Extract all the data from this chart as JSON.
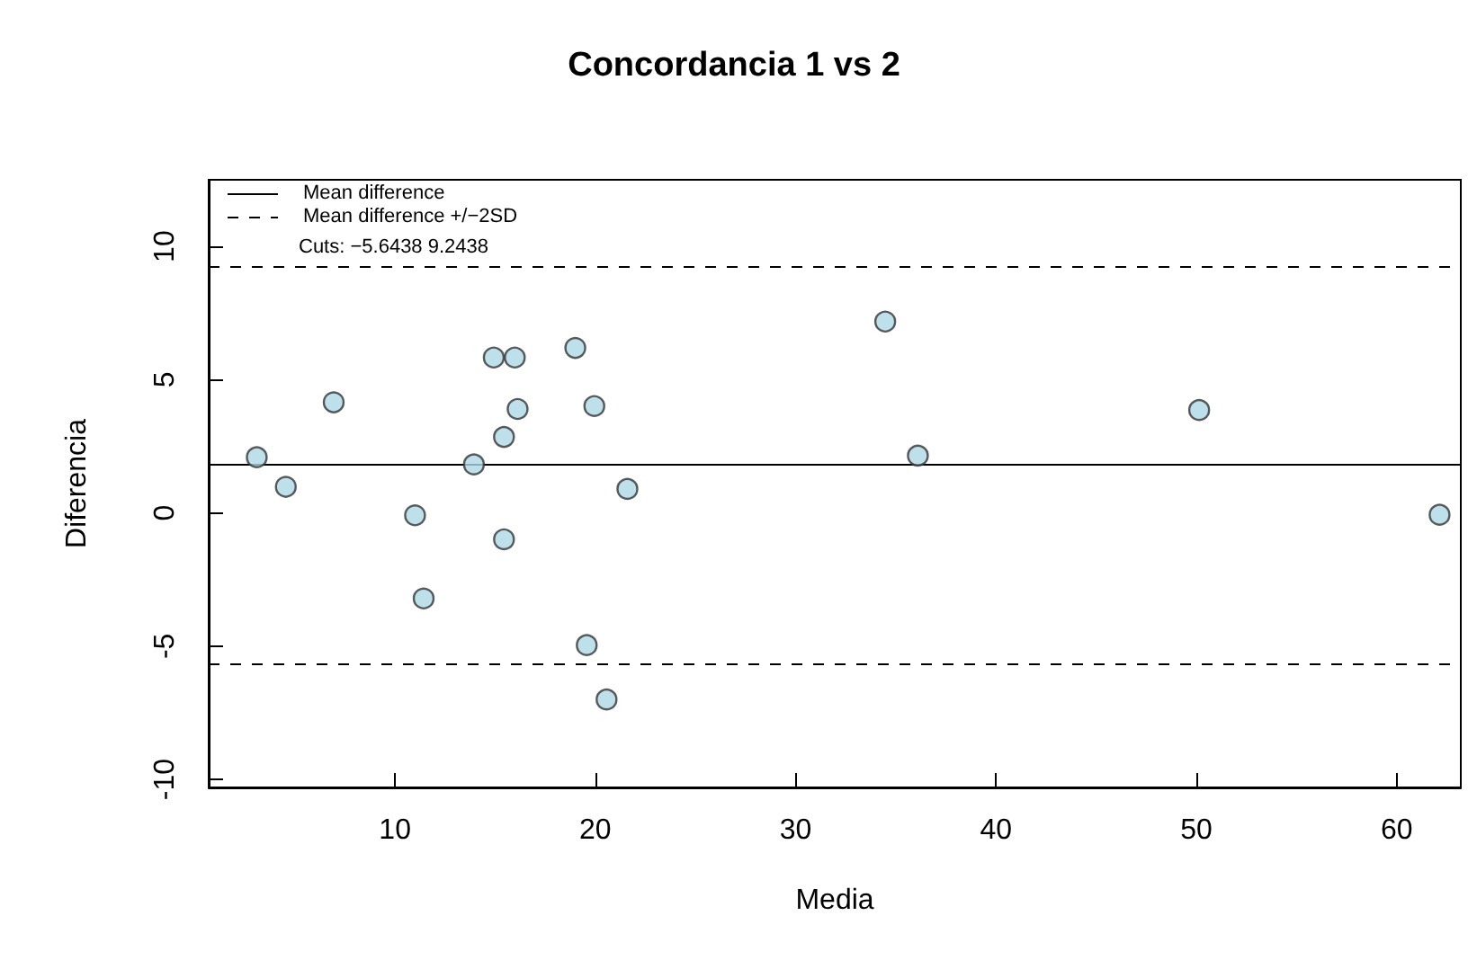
{
  "chart_data": {
    "type": "scatter",
    "title": "Concordancia 1 vs 2",
    "xlabel": "Media",
    "ylabel": "Diferencia",
    "x": [
      3.1,
      4.55,
      6.94,
      11.0,
      11.43,
      13.94,
      14.93,
      15.98,
      15.44,
      15.44,
      16.12,
      19.0,
      19.57,
      19.95,
      20.56,
      21.6,
      34.47,
      36.1,
      50.14,
      62.14
    ],
    "series": [
      {
        "color": "#add8e6",
        "marker": "circle",
        "values": [
          2.09,
          0.98,
          4.15,
          -0.09,
          -3.21,
          1.82,
          5.83,
          5.83,
          2.85,
          -0.99,
          3.9,
          6.19,
          -4.96,
          4.01,
          -7.0,
          0.9,
          7.18,
          2.15,
          3.86,
          -0.07
        ]
      }
    ],
    "ref_lines": [
      {
        "axis": "y",
        "value": 1.8,
        "label": "Mean difference",
        "color": "#000000",
        "line_style": "solid"
      },
      {
        "axis": "y",
        "value": 9.2438,
        "label": "Mean difference +/−2SD",
        "color": "#000000",
        "line_style": "dashed"
      },
      {
        "axis": "y",
        "value": -5.6438,
        "color": "#000000",
        "line_style": "dashed"
      }
    ],
    "annotations": [
      "Cuts: −5.6438 9.2438"
    ],
    "legend": "top left",
    "grid": false,
    "xlim": [
      0.7,
      63.2
    ],
    "xticks": [
      10,
      20,
      30,
      40,
      50,
      60
    ],
    "ylim": [
      -10.3,
      12.5
    ],
    "yticks": [
      -10,
      -5,
      0,
      5,
      10
    ]
  }
}
